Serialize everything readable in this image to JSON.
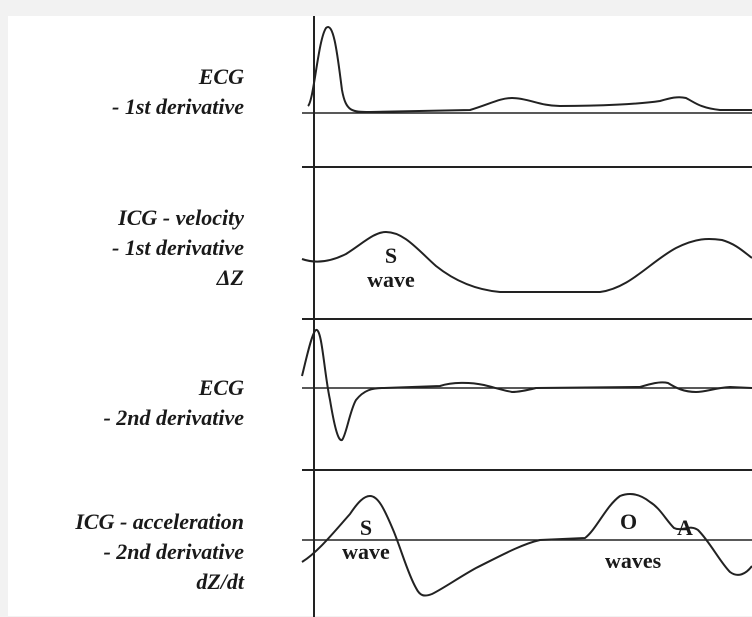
{
  "figure": {
    "panels": [
      {
        "label_lines": [
          "ECG",
          "- 1st derivative"
        ]
      },
      {
        "label_lines": [
          "ICG - velocity",
          "- 1st derivative",
          "ΔZ"
        ]
      },
      {
        "label_lines": [
          "ECG",
          "- 2nd derivative"
        ]
      },
      {
        "label_lines": [
          "ICG - acceleration",
          "- 2nd derivative",
          "dZ/dt"
        ]
      }
    ],
    "annotations": {
      "s_wave_1": [
        "S",
        "wave"
      ],
      "s_wave_2": [
        "S",
        "wave"
      ],
      "o_label": "O",
      "a_label": "A",
      "oa_waves": "waves"
    }
  }
}
